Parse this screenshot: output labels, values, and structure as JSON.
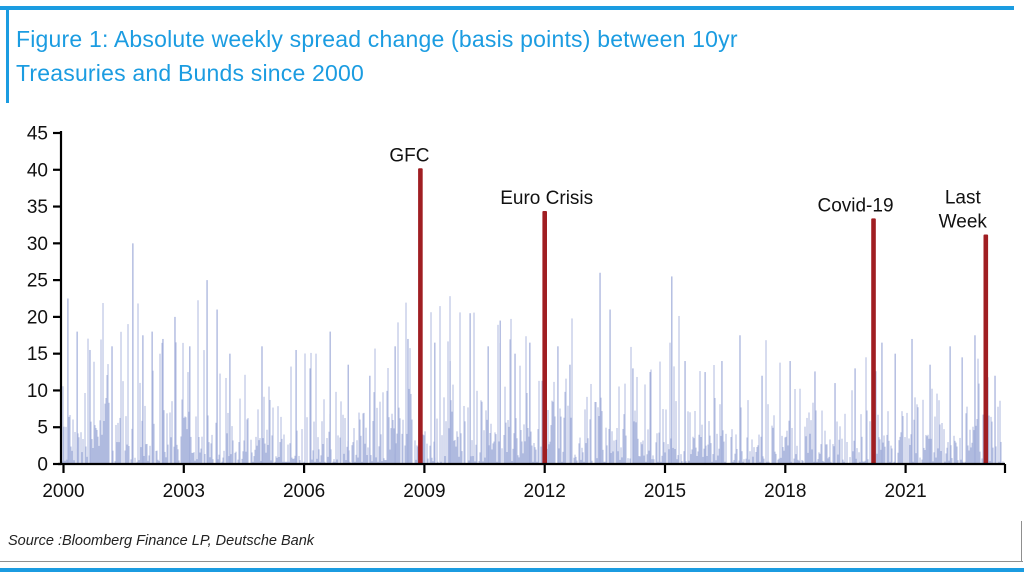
{
  "figure": {
    "title_line1": "Figure 1: Absolute weekly spread change (basis points) between 10yr",
    "title_line2": "Treasuries and Bunds since 2000",
    "source": "Source :Bloomberg Finance LP, Deutsche Bank",
    "accent_blue": "#1B9CE1",
    "bar_color": "#A2AEDA",
    "highlight_color": "#A01E22",
    "axis_color": "#000000",
    "text_color": "#111111"
  },
  "chart_data": {
    "type": "bar",
    "title": "Absolute weekly spread change (basis points) between 10yr Treasuries and Bunds since 2000",
    "xlabel": "",
    "ylabel": "",
    "ylim": [
      0,
      45
    ],
    "xlim": [
      2000,
      2023.5
    ],
    "grid": false,
    "legend": null,
    "y_ticks": [
      0,
      5,
      10,
      15,
      20,
      25,
      30,
      35,
      40,
      45
    ],
    "x_ticks": [
      2000,
      2003,
      2006,
      2009,
      2012,
      2015,
      2018,
      2021
    ],
    "series_note": "Weekly absolute spread changes since 2000; dense background series approx. 0-20bp with notable peaks listed; four highlighted event weeks in dark red.",
    "seed": 20,
    "base_mean": 4.2,
    "background_peaks": [
      [
        2000.11,
        22.5
      ],
      [
        2000.34,
        18
      ],
      [
        2000.66,
        15.5
      ],
      [
        2001.21,
        16
      ],
      [
        2001.73,
        30
      ],
      [
        2001.98,
        17.5
      ],
      [
        2002.21,
        18
      ],
      [
        2002.48,
        17
      ],
      [
        2002.78,
        20
      ],
      [
        2003.15,
        16
      ],
      [
        2003.58,
        25
      ],
      [
        2003.83,
        21
      ],
      [
        2004.15,
        15
      ],
      [
        2004.95,
        16
      ],
      [
        2005.8,
        15.5
      ],
      [
        2006.15,
        13
      ],
      [
        2006.65,
        18
      ],
      [
        2007.1,
        13.5
      ],
      [
        2007.64,
        12
      ],
      [
        2008.27,
        16
      ],
      [
        2008.59,
        17
      ],
      [
        2009.26,
        16.5
      ],
      [
        2009.64,
        14
      ],
      [
        2010.14,
        20.5
      ],
      [
        2010.59,
        16
      ],
      [
        2010.89,
        19.5
      ],
      [
        2011.26,
        15
      ],
      [
        2011.63,
        16.5
      ],
      [
        2012.33,
        16
      ],
      [
        2012.63,
        13.5
      ],
      [
        2013.38,
        26
      ],
      [
        2013.63,
        21
      ],
      [
        2014.2,
        13
      ],
      [
        2014.63,
        12.5
      ],
      [
        2015.17,
        25.5
      ],
      [
        2015.5,
        14
      ],
      [
        2016.0,
        12.5
      ],
      [
        2016.42,
        14
      ],
      [
        2016.87,
        17.5
      ],
      [
        2017.42,
        12
      ],
      [
        2018.12,
        14
      ],
      [
        2018.74,
        12.5
      ],
      [
        2019.24,
        11
      ],
      [
        2019.74,
        13
      ],
      [
        2020.41,
        16.5
      ],
      [
        2020.74,
        15
      ],
      [
        2021.16,
        17
      ],
      [
        2021.61,
        13.5
      ],
      [
        2022.11,
        16
      ],
      [
        2022.41,
        14.5
      ],
      [
        2022.73,
        17.5
      ],
      [
        2023.23,
        12
      ]
    ],
    "events": [
      {
        "label": "GFC",
        "label_lines": [
          "GFC"
        ],
        "label_dx": -11,
        "year": 2008.9,
        "value": 40.2
      },
      {
        "label": "Euro Crisis",
        "label_lines": [
          "Euro Crisis"
        ],
        "label_dx": 2,
        "year": 2012.0,
        "value": 34.4
      },
      {
        "label": "Covid-19",
        "label_lines": [
          "Covid-19"
        ],
        "label_dx": -18,
        "year": 2020.2,
        "value": 33.4
      },
      {
        "label": "Last Week",
        "label_lines": [
          "Last",
          "Week"
        ],
        "label_dx": -23,
        "year": 2023.0,
        "value": 31.2
      }
    ]
  }
}
